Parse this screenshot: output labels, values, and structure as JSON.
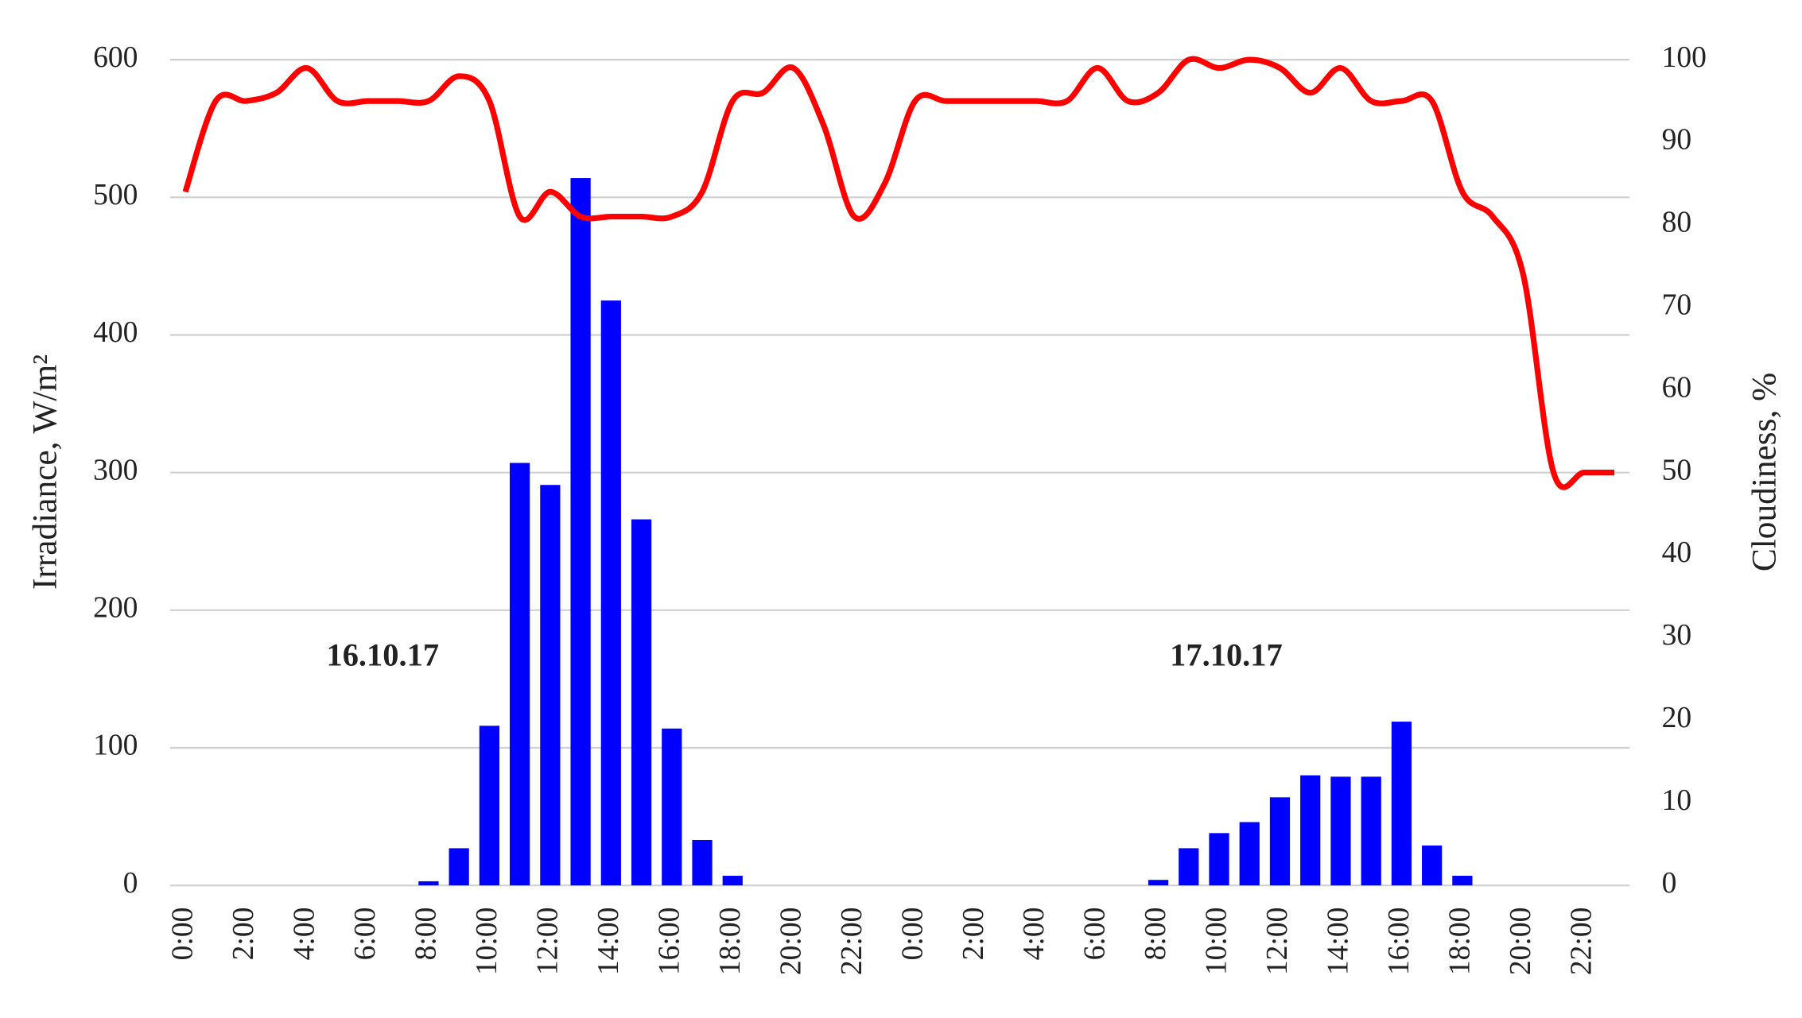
{
  "chart_data": {
    "type": "bar",
    "categories": [
      "0:00",
      null,
      "2:00",
      null,
      "4:00",
      null,
      "6:00",
      null,
      "8:00",
      null,
      "10:00",
      null,
      "12:00",
      null,
      "14:00",
      null,
      "16:00",
      null,
      "18:00",
      null,
      "20:00",
      null,
      "22:00",
      null,
      "0:00",
      null,
      "2:00",
      null,
      "4:00",
      null,
      "6:00",
      null,
      "8:00",
      null,
      "10:00",
      null,
      "12:00",
      null,
      "14:00",
      null,
      "16:00",
      null,
      "18:00",
      null,
      "20:00",
      null,
      "22:00",
      null
    ],
    "series": [
      {
        "name": "Irradiance",
        "type": "bar",
        "color": "#0000ff",
        "values": [
          0,
          0,
          0,
          0,
          0,
          0,
          0,
          0,
          3,
          27,
          116,
          307,
          291,
          514,
          425,
          266,
          114,
          33,
          7,
          0,
          0,
          0,
          0,
          0,
          0,
          0,
          0,
          0,
          0,
          0,
          0,
          0,
          4,
          27,
          38,
          46,
          64,
          80,
          79,
          79,
          119,
          29,
          7,
          0,
          0,
          0,
          0,
          0
        ]
      },
      {
        "name": "Cloudiness",
        "type": "line",
        "axis": "y2",
        "color": "#ff0000",
        "values": [
          84,
          95,
          95,
          96,
          99,
          95,
          95,
          95,
          95,
          98,
          95,
          81,
          84,
          81,
          81,
          81,
          81,
          84,
          95,
          96,
          99,
          92,
          81,
          85,
          95,
          95,
          95,
          95,
          95,
          95,
          99,
          95,
          96,
          100,
          99,
          100,
          99,
          96,
          99,
          95,
          95,
          95,
          84,
          81,
          74,
          50,
          50,
          50
        ]
      }
    ],
    "ylabel": "Irradiance, W/m²",
    "y2label": "Cloudiness, %",
    "ylim": [
      0,
      600
    ],
    "yticks": [
      0,
      100,
      200,
      300,
      400,
      500,
      600
    ],
    "y2lim": [
      0,
      100
    ],
    "y2ticks": [
      0,
      10,
      20,
      30,
      40,
      50,
      60,
      70,
      80,
      90,
      100
    ],
    "grid": true,
    "annotations": [
      "16.10.17",
      "17.10.17"
    ]
  }
}
